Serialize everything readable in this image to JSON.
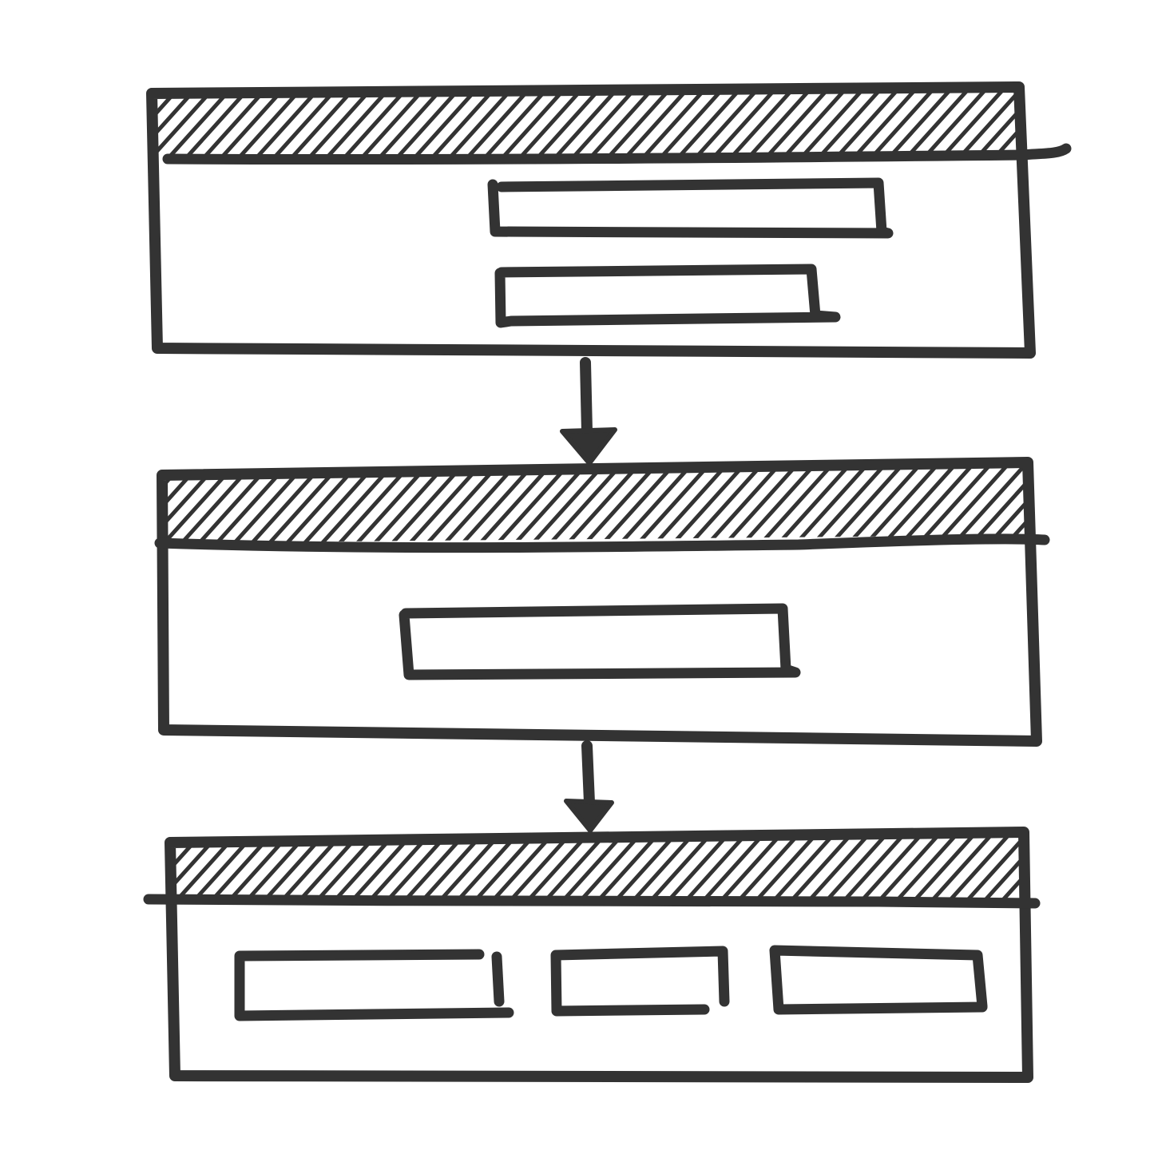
{
  "diagram": {
    "kind": "wireframe-flow",
    "style": "hand-drawn",
    "ink_color": "#333333",
    "background": "#ffffff",
    "frames": [
      {
        "id": "frame-1",
        "header": "hatched",
        "content_blocks": 2,
        "content_layout": "stacked"
      },
      {
        "id": "frame-2",
        "header": "hatched",
        "content_blocks": 1,
        "content_layout": "centered"
      },
      {
        "id": "frame-3",
        "header": "hatched",
        "content_blocks": 3,
        "content_layout": "row"
      }
    ],
    "connectors": [
      {
        "from": "frame-1",
        "to": "frame-2",
        "style": "arrow-down"
      },
      {
        "from": "frame-2",
        "to": "frame-3",
        "style": "arrow-down"
      }
    ]
  }
}
